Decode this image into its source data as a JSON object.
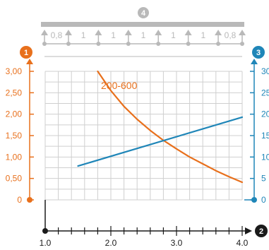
{
  "colors": {
    "left_axis": "#e8701c",
    "right_axis": "#1f86b8",
    "bottom_axis": "#1a1a1a",
    "span_schematic": "#b9b9b9",
    "grid": "#cfcfcf"
  },
  "markers": {
    "span": "4",
    "left_axis": "1",
    "bottom_axis": "2",
    "right_axis": "3"
  },
  "span_schematic": {
    "spans": [
      "0,8",
      "1",
      "1",
      "1",
      "1",
      "1",
      "0,8"
    ]
  },
  "chart_data": {
    "type": "line",
    "x_ticks": [
      "1.0",
      "2.0",
      "3.0",
      "4.0"
    ],
    "xlim": [
      1.0,
      4.0
    ],
    "y_left_ticks": [
      "0",
      "0,50",
      "1,00",
      "1,50",
      "2,00",
      "2,50",
      "3,00"
    ],
    "y_left_lim": [
      0,
      3.0
    ],
    "y_right_ticks": [
      "0",
      "5",
      "10",
      "15",
      "20",
      "25",
      "30"
    ],
    "y_right_lim": [
      0,
      30
    ],
    "grid": true,
    "series": [
      {
        "name": "200-600",
        "axis": "left",
        "color": "#e8701c",
        "x": [
          1.8,
          2.0,
          2.2,
          2.4,
          2.6,
          2.8,
          3.0,
          3.2,
          3.4,
          3.6,
          3.8,
          4.0
        ],
        "y": [
          3.0,
          2.55,
          2.18,
          1.88,
          1.62,
          1.39,
          1.19,
          1.0,
          0.84,
          0.68,
          0.54,
          0.41
        ]
      },
      {
        "axis": "right",
        "color": "#1f86b8",
        "x": [
          1.5,
          4.0
        ],
        "y": [
          7.9,
          19.3
        ]
      }
    ]
  }
}
